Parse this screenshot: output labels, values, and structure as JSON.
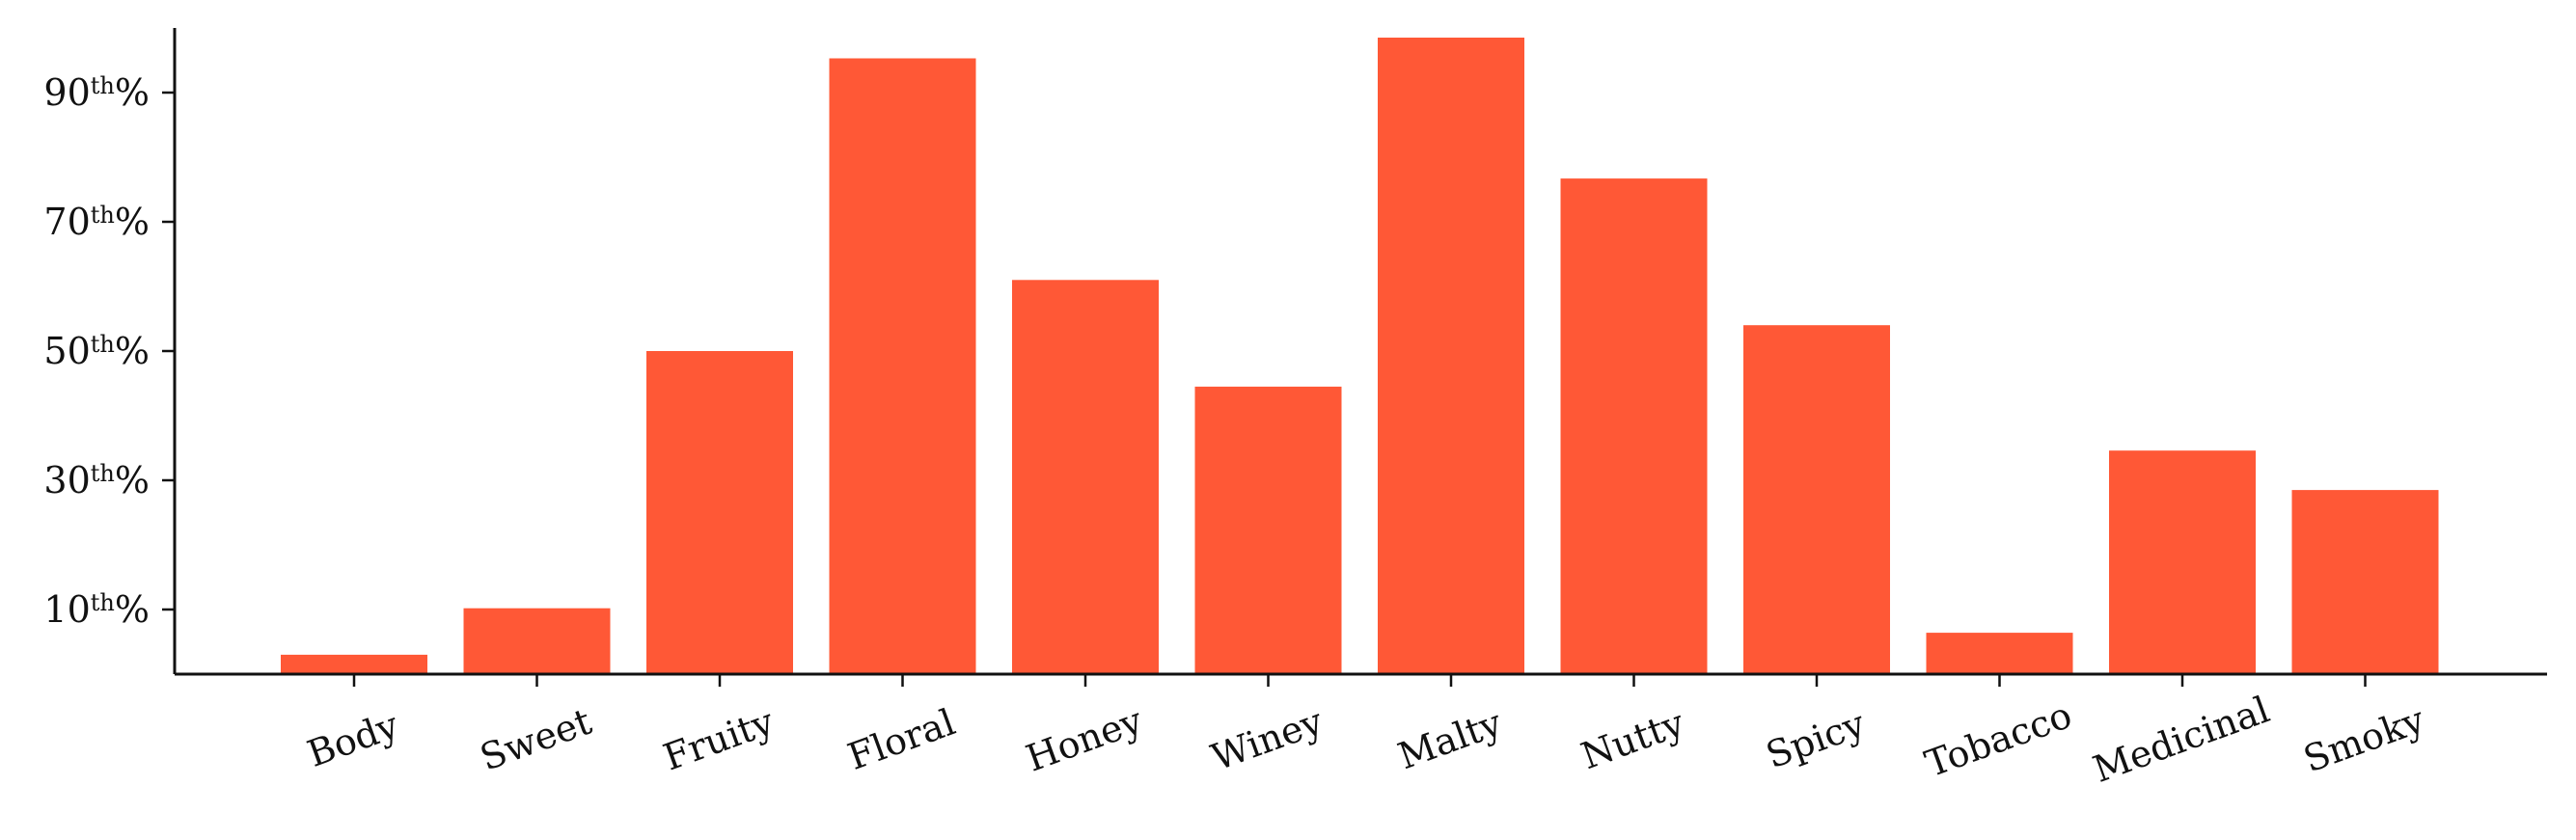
{
  "chart_data": {
    "type": "bar",
    "title": "",
    "xlabel": "",
    "ylabel": "",
    "categories": [
      "Body",
      "Sweet",
      "Fruity",
      "Floral",
      "Honey",
      "Winey",
      "Malty",
      "Nutty",
      "Spicy",
      "Tobacco",
      "Medicinal",
      "Smoky"
    ],
    "values": [
      3.0,
      10.2,
      50.0,
      95.3,
      61.0,
      44.5,
      98.5,
      76.7,
      54.0,
      6.4,
      34.6,
      28.5
    ],
    "ylim": [
      0,
      100
    ],
    "yticks": [
      {
        "value": 10,
        "num": "10",
        "sup": "th",
        "suffix": "%"
      },
      {
        "value": 30,
        "num": "30",
        "sup": "th",
        "suffix": "%"
      },
      {
        "value": 50,
        "num": "50",
        "sup": "th",
        "suffix": "%"
      },
      {
        "value": 70,
        "num": "70",
        "sup": "th",
        "suffix": "%"
      },
      {
        "value": 90,
        "num": "90",
        "sup": "th",
        "suffix": "%"
      }
    ],
    "grid": false,
    "legend": "none",
    "bar_color": "#FF5836",
    "axis_color": "#111111"
  }
}
